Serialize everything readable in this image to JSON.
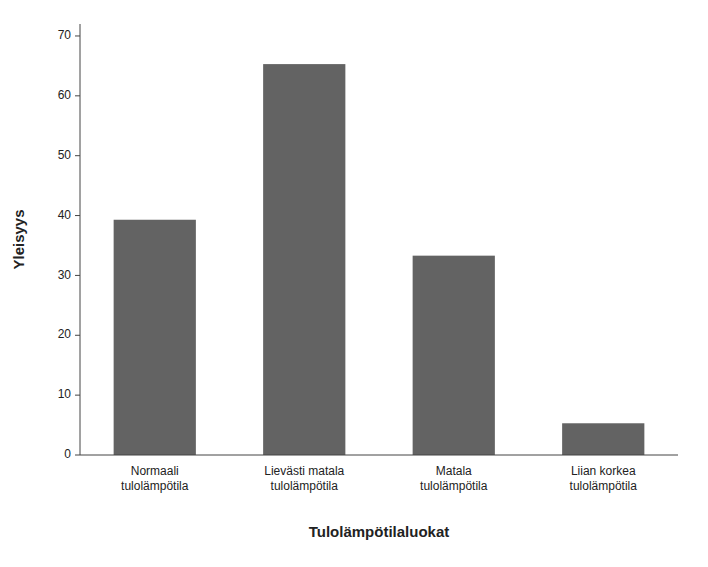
{
  "chart_data": {
    "type": "bar",
    "categories": [
      "Normaali\ntulolämpötila",
      "Lievästi matala\ntulolämpötila",
      "Matala\ntulolämpötila",
      "Liian korkea\ntulolämpötila"
    ],
    "values": [
      39.3,
      65.3,
      33.3,
      5.3
    ],
    "color": "#636363",
    "xlabel": "Tulolämpötilaluokat",
    "ylabel": "Yleisyys",
    "ylim": [
      0,
      72
    ],
    "yticks": [
      0,
      10,
      20,
      30,
      40,
      50,
      60,
      70
    ],
    "grid": false
  }
}
